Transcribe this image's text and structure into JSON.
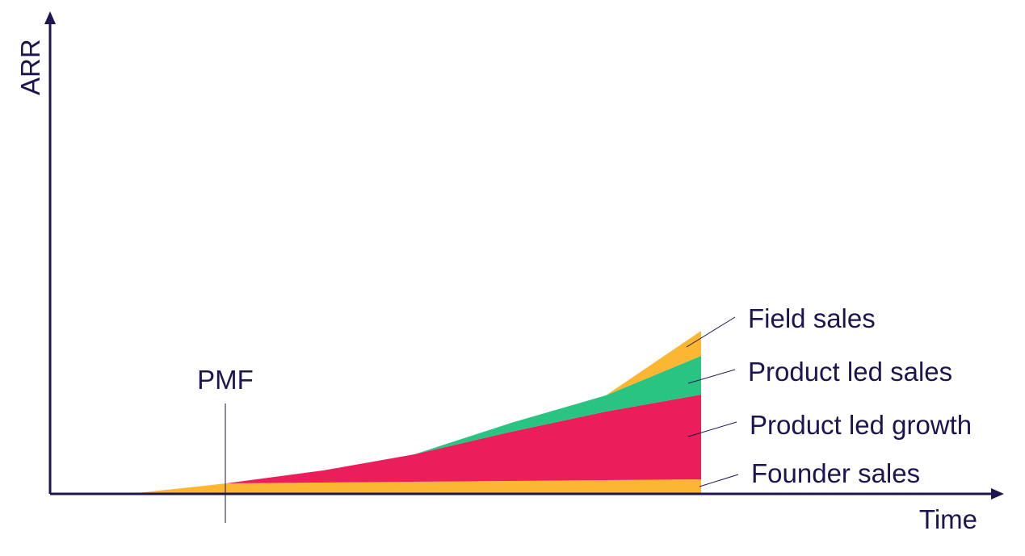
{
  "axes": {
    "y_label": "ARR",
    "x_label": "Time"
  },
  "marker": {
    "label": "PMF"
  },
  "layers": [
    {
      "label": "Field sales"
    },
    {
      "label": "Product led sales"
    },
    {
      "label": "Product led growth"
    },
    {
      "label": "Founder sales"
    }
  ]
}
